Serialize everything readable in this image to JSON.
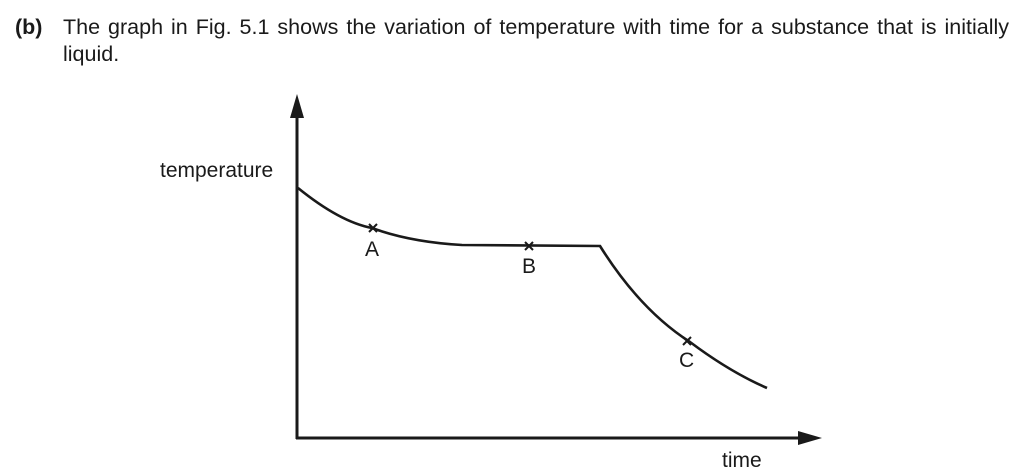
{
  "question": {
    "label": "(b)",
    "text": "The graph in Fig. 5.1 shows the variation of temperature with time for a substance that is initially liquid."
  },
  "graph": {
    "y_axis_label": "temperature",
    "x_axis_label": "time",
    "points": [
      {
        "label": "A"
      },
      {
        "label": "B"
      },
      {
        "label": "C"
      }
    ]
  }
}
